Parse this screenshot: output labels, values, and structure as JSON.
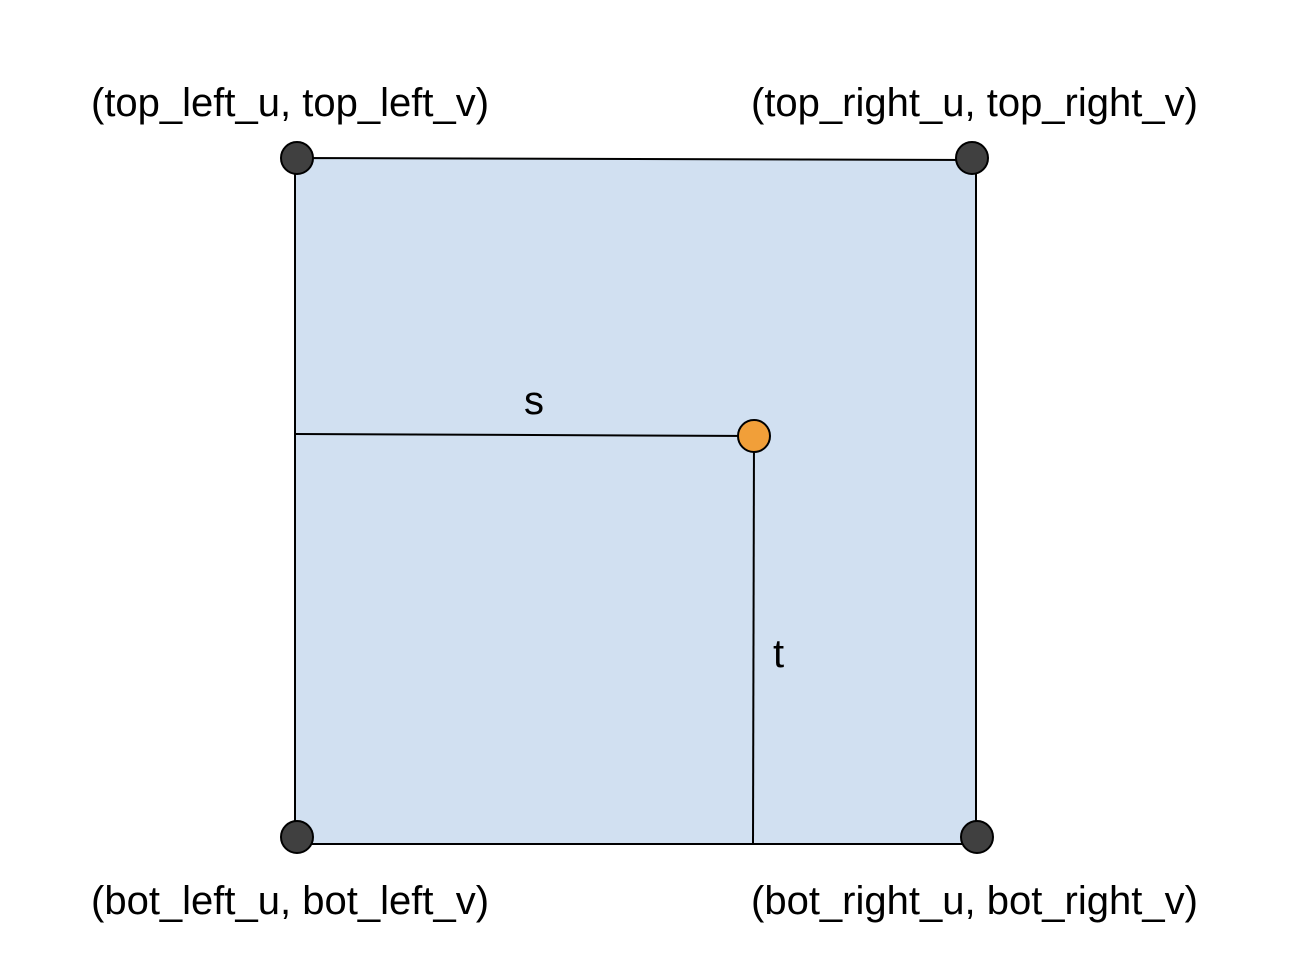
{
  "labels": {
    "top_left": "(top_left_u, top_left_v)",
    "top_right": "(top_right_u, top_right_v)",
    "bot_left": "(bot_left_u, bot_left_v)",
    "bot_right": "(bot_right_u, bot_right_v)",
    "s": "s",
    "t": "t"
  },
  "colors": {
    "quad_fill": "#d1e0f1",
    "outline": "#000000",
    "corner_point": "#404040",
    "sample_point": "#f19f39"
  }
}
